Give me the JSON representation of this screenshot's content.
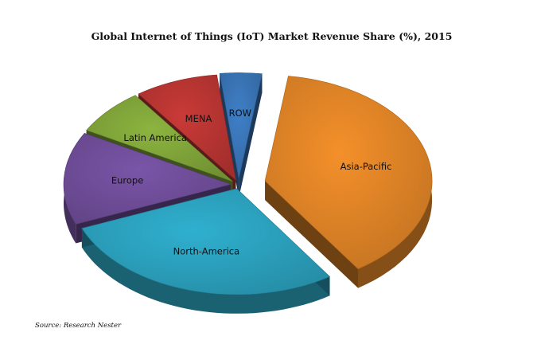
{
  "chart_data": {
    "type": "pie",
    "title": "Global Internet of Things (IoT) Market Revenue Share (%), 2015",
    "source": "Source: Research Nester",
    "categories": [
      "Asia-Pacific",
      "North-America",
      "Europe",
      "Latin America",
      "MENA",
      "ROW"
    ],
    "values": [
      38,
      28,
      14,
      7,
      8,
      4
    ],
    "colors": {
      "Asia-Pacific": "#f4902a",
      "North-America": "#2fb0cf",
      "Europe": "#7a55a8",
      "Latin America": "#8cb43f",
      "MENA": "#c93a37",
      "ROW": "#3f7fc7"
    },
    "style": "3d-exploded",
    "legend": "none"
  }
}
